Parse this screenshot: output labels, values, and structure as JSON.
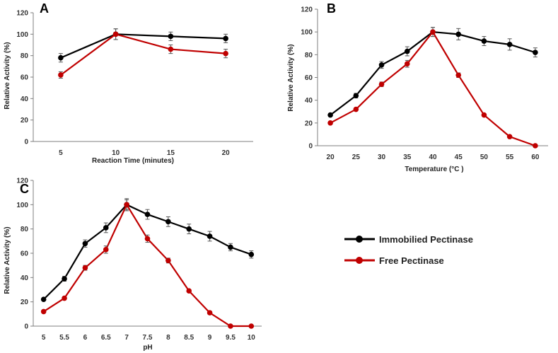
{
  "colors": {
    "immobilized": "#000000",
    "free": "#c00000",
    "axis": "#7f7f7f",
    "errbar": "#555555"
  },
  "legend": {
    "immobilized": "Immobilied Pectinase",
    "free": "Free Pectinase"
  },
  "chart_data": [
    {
      "panel": "A",
      "type": "line",
      "xlabel": "Reaction Time (minutes)",
      "ylabel": "Relative Activity (%)",
      "categories": [
        "5",
        "10",
        "15",
        "20"
      ],
      "yticks": [
        "0",
        "20",
        "40",
        "60",
        "80",
        "100",
        "120"
      ],
      "ylim": [
        0,
        120
      ],
      "series": [
        {
          "name": "Immobilied Pectinase",
          "values": [
            78,
            100,
            98,
            96
          ],
          "errors": [
            4,
            5,
            4,
            4
          ]
        },
        {
          "name": "Free Pectinase",
          "values": [
            62,
            100,
            86,
            82
          ],
          "errors": [
            3,
            5,
            4,
            4
          ]
        }
      ]
    },
    {
      "panel": "B",
      "type": "line",
      "xlabel": "Temperature (°C )",
      "ylabel": "Relative Activity (%)",
      "categories": [
        "20",
        "25",
        "30",
        "35",
        "40",
        "45",
        "50",
        "55",
        "60"
      ],
      "yticks": [
        "0",
        "20",
        "40",
        "60",
        "80",
        "100",
        "120"
      ],
      "ylim": [
        0,
        120
      ],
      "series": [
        {
          "name": "Immobilied Pectinase",
          "values": [
            27,
            44,
            71,
            83,
            100,
            98,
            92,
            89,
            82
          ],
          "errors": [
            1,
            2,
            3,
            4,
            4,
            5,
            4,
            5,
            4
          ]
        },
        {
          "name": "Free Pectinase",
          "values": [
            20,
            32,
            54,
            72,
            100,
            62,
            27,
            8,
            0
          ],
          "errors": [
            1,
            1,
            2,
            3,
            4,
            2,
            1,
            1,
            0
          ]
        }
      ]
    },
    {
      "panel": "C",
      "type": "line",
      "xlabel": "pH",
      "ylabel": "Relative Activity (%)",
      "categories": [
        "5",
        "5.5",
        "6",
        "6.5",
        "7",
        "7.5",
        "8",
        "8.5",
        "9",
        "9.5",
        "10"
      ],
      "yticks": [
        "0",
        "20",
        "40",
        "60",
        "80",
        "100",
        "120"
      ],
      "ylim": [
        0,
        120
      ],
      "series": [
        {
          "name": "Immobilied Pectinase",
          "values": [
            22,
            39,
            68,
            81,
            100,
            92,
            86,
            80,
            74,
            65,
            59
          ],
          "errors": [
            1,
            2,
            3,
            4,
            5,
            4,
            4,
            4,
            4,
            3,
            3
          ]
        },
        {
          "name": "Free Pectinase",
          "values": [
            12,
            23,
            48,
            63,
            100,
            72,
            54,
            29,
            11,
            0,
            0
          ],
          "errors": [
            1,
            1,
            2,
            3,
            4,
            3,
            2,
            1,
            1,
            0,
            0
          ]
        }
      ]
    }
  ]
}
